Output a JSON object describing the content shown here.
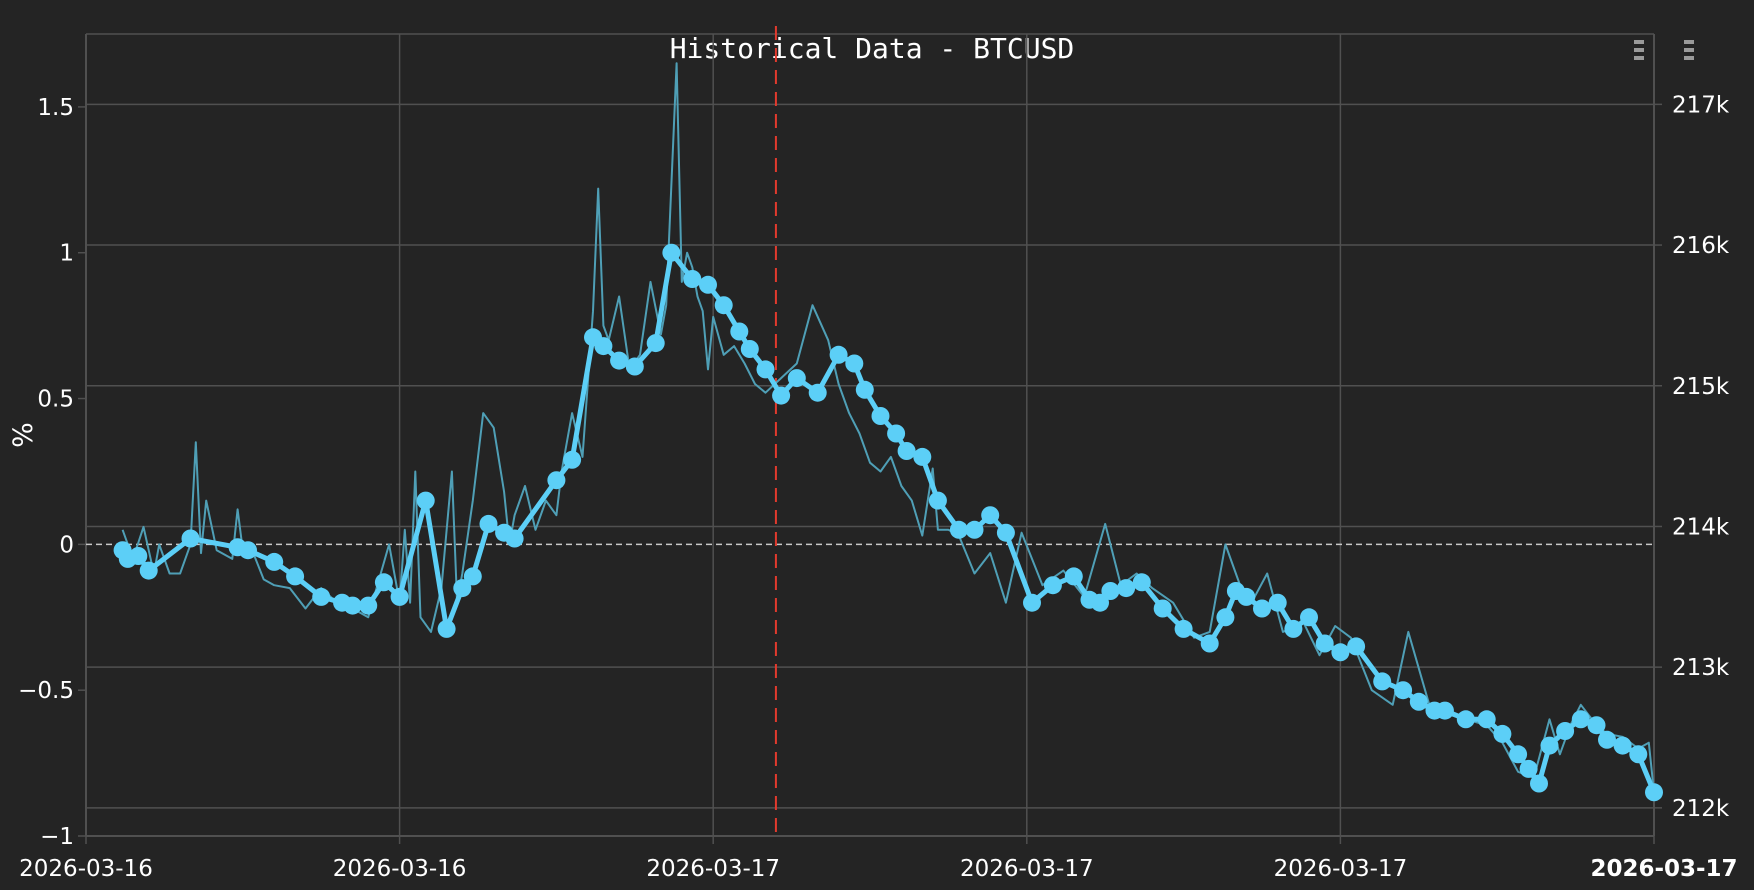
{
  "chart_data": {
    "type": "line",
    "title": "Historical Data - BTCUSD",
    "xlabel": "",
    "ylabel": "%",
    "ylim": [
      -1,
      1.75
    ],
    "y_right_range": [
      211.8,
      217.5
    ],
    "x_tick_labels": [
      "2026-03-16",
      "2026-03-16",
      "2026-03-17",
      "2026-03-17",
      "2026-03-17",
      "2026-03-17"
    ],
    "x_tick_positions_hours": [
      0,
      6,
      12,
      18,
      24,
      30
    ],
    "xlim_hours": [
      0,
      30
    ],
    "y_ticks": [
      -1,
      -0.5,
      0,
      0.5,
      1,
      1.5
    ],
    "y_tick_labels": [
      "−1",
      "−0.5",
      "0",
      "0.5",
      "1",
      "1.5"
    ],
    "y_right_ticks": [
      212,
      213,
      214,
      215,
      216,
      217
    ],
    "y_right_tick_labels": [
      "212k",
      "213k",
      "214k",
      "215k",
      "216k",
      "217k"
    ],
    "reference_line_y": 0,
    "event_line_x_hours": 13.2,
    "grid": true,
    "series": [
      {
        "style": "line-markers",
        "x": [
          0.7,
          0.8,
          1.0,
          1.2,
          2.0,
          2.9,
          3.1,
          3.6,
          4.0,
          4.5,
          4.9,
          5.1,
          5.4,
          5.7,
          6.0,
          6.5,
          6.9,
          7.2,
          7.4,
          7.7,
          8.0,
          8.2,
          9.0,
          9.3,
          9.7,
          9.9,
          10.2,
          10.5,
          10.9,
          11.2,
          11.6,
          11.9,
          12.2,
          12.5,
          12.7,
          13.0,
          13.3,
          13.6,
          14.0,
          14.4,
          14.7,
          14.9,
          15.2,
          15.5,
          15.7,
          16.0,
          16.3,
          16.7,
          17.0,
          17.3,
          17.6,
          18.1,
          18.5,
          18.9,
          19.2,
          19.4,
          19.6,
          19.9,
          20.2,
          20.6,
          21.0,
          21.5,
          21.8,
          22.0,
          22.2,
          22.5,
          22.8,
          23.1,
          23.4,
          23.7,
          24.0,
          24.3,
          24.8,
          25.2,
          25.5,
          25.8,
          26.0,
          26.4,
          26.8,
          27.1,
          27.4,
          27.6,
          27.8,
          28.0,
          28.3,
          28.6,
          28.9,
          29.1,
          29.4,
          29.7,
          30.0
        ],
        "values": [
          -0.02,
          -0.05,
          -0.04,
          -0.09,
          0.02,
          -0.01,
          -0.02,
          -0.06,
          -0.11,
          -0.18,
          -0.2,
          -0.21,
          -0.21,
          -0.13,
          -0.18,
          0.15,
          -0.29,
          -0.15,
          -0.11,
          0.07,
          0.04,
          0.02,
          0.22,
          0.29,
          0.71,
          0.68,
          0.63,
          0.61,
          0.69,
          1.0,
          0.91,
          0.89,
          0.82,
          0.73,
          0.67,
          0.6,
          0.51,
          0.57,
          0.52,
          0.65,
          0.62,
          0.53,
          0.44,
          0.38,
          0.32,
          0.3,
          0.15,
          0.05,
          0.05,
          0.1,
          0.04,
          -0.2,
          -0.14,
          -0.11,
          -0.19,
          -0.2,
          -0.16,
          -0.15,
          -0.13,
          -0.22,
          -0.29,
          -0.34,
          -0.25,
          -0.16,
          -0.18,
          -0.22,
          -0.2,
          -0.29,
          -0.25,
          -0.34,
          -0.37,
          -0.35,
          -0.47,
          -0.5,
          -0.54,
          -0.57,
          -0.57,
          -0.6,
          -0.6,
          -0.65,
          -0.72,
          -0.77,
          -0.82,
          -0.69,
          -0.64,
          -0.6,
          -0.62,
          -0.67,
          -0.69,
          -0.72,
          -0.85
        ]
      },
      {
        "style": "thin-line",
        "x": [
          0.7,
          0.9,
          1.1,
          1.3,
          1.4,
          1.6,
          1.8,
          2.0,
          2.1,
          2.2,
          2.3,
          2.5,
          2.8,
          2.9,
          3.0,
          3.2,
          3.4,
          3.6,
          3.9,
          4.2,
          4.5,
          4.8,
          5.1,
          5.4,
          5.8,
          6.0,
          6.1,
          6.2,
          6.3,
          6.4,
          6.6,
          6.8,
          7.0,
          7.1,
          7.2,
          7.4,
          7.6,
          7.8,
          8.0,
          8.1,
          8.2,
          8.4,
          8.6,
          8.8,
          9.0,
          9.1,
          9.3,
          9.5,
          9.7,
          9.8,
          9.9,
          10.0,
          10.2,
          10.4,
          10.6,
          10.8,
          11.0,
          11.1,
          11.3,
          11.4,
          11.5,
          11.6,
          11.7,
          11.8,
          11.9,
          12.0,
          12.2,
          12.4,
          12.6,
          12.8,
          13.0,
          13.3,
          13.6,
          13.9,
          14.2,
          14.4,
          14.6,
          14.8,
          15.0,
          15.2,
          15.4,
          15.6,
          15.8,
          16.0,
          16.2,
          16.3,
          16.5,
          16.7,
          17.0,
          17.3,
          17.6,
          17.9,
          18.3,
          18.7,
          19.1,
          19.5,
          19.8,
          20.1,
          20.4,
          20.8,
          21.2,
          21.5,
          21.8,
          22.1,
          22.3,
          22.6,
          22.9,
          23.3,
          23.6,
          23.9,
          24.2,
          24.6,
          25.0,
          25.3,
          25.7,
          26.0,
          26.4,
          26.8,
          27.1,
          27.4,
          27.7,
          28.0,
          28.2,
          28.4,
          28.6,
          28.9,
          29.1,
          29.4,
          29.7,
          29.9,
          30.0
        ],
        "values": [
          0.05,
          -0.05,
          0.06,
          -0.1,
          0.0,
          -0.1,
          -0.1,
          0.0,
          0.35,
          -0.03,
          0.15,
          -0.02,
          -0.05,
          0.12,
          -0.02,
          -0.03,
          -0.12,
          -0.14,
          -0.15,
          -0.22,
          -0.15,
          -0.2,
          -0.22,
          -0.25,
          0.0,
          -0.2,
          0.05,
          -0.2,
          0.25,
          -0.25,
          -0.3,
          -0.15,
          0.25,
          -0.2,
          -0.1,
          0.15,
          0.45,
          0.4,
          0.18,
          0.0,
          0.1,
          0.2,
          0.05,
          0.15,
          0.1,
          0.25,
          0.45,
          0.3,
          0.8,
          1.22,
          0.75,
          0.7,
          0.85,
          0.6,
          0.65,
          0.9,
          0.72,
          0.82,
          1.65,
          0.9,
          1.0,
          0.95,
          0.85,
          0.8,
          0.6,
          0.78,
          0.65,
          0.68,
          0.62,
          0.55,
          0.52,
          0.57,
          0.62,
          0.82,
          0.7,
          0.55,
          0.45,
          0.38,
          0.28,
          0.25,
          0.3,
          0.2,
          0.15,
          0.03,
          0.26,
          0.05,
          0.05,
          0.03,
          -0.1,
          -0.03,
          -0.2,
          0.04,
          -0.14,
          -0.09,
          -0.18,
          0.07,
          -0.14,
          -0.1,
          -0.15,
          -0.2,
          -0.32,
          -0.3,
          0.0,
          -0.15,
          -0.2,
          -0.1,
          -0.3,
          -0.27,
          -0.38,
          -0.28,
          -0.32,
          -0.5,
          -0.55,
          -0.3,
          -0.55,
          -0.58,
          -0.6,
          -0.62,
          -0.68,
          -0.78,
          -0.8,
          -0.6,
          -0.72,
          -0.62,
          -0.55,
          -0.62,
          -0.65,
          -0.66,
          -0.7,
          -0.68,
          -0.85
        ]
      }
    ],
    "colors": {
      "background": "#242424",
      "main_series": "#5ccff7",
      "thin_series": "#4f9fb6",
      "grid": "#505050",
      "reference_line": "#c8c8c8",
      "event_line": "#e23a2e",
      "text": "#ffffff"
    }
  }
}
